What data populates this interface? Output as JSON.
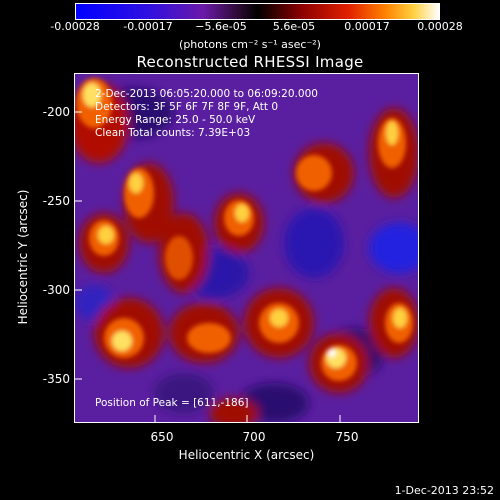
{
  "colorbar": {
    "ticks": [
      "-0.00028",
      "-0.00017",
      "−5.6e-05",
      "5.6e-05",
      "0.00017",
      "0.00028"
    ],
    "units": "(photons cm⁻² s⁻¹ asec⁻²)"
  },
  "title": "Reconstructed RHESSI Image",
  "annotations": {
    "time_range": "2-Dec-2013 06:05:20.000 to 06:09:20.000",
    "detectors": "Detectors: 3F 5F 6F 7F 8F 9F, Att 0",
    "energy_range": "Energy Range: 25.0 - 50.0 keV",
    "algorithm": "Clean     Total counts: 7.39E+03",
    "peak": "Position of Peak = [611,-186]"
  },
  "chart_data": {
    "type": "heatmap",
    "title": "Reconstructed RHESSI Image",
    "xlabel": "Heliocentric X (arcsec)",
    "ylabel": "Heliocentric Y (arcsec)",
    "xlim": [
      605,
      790
    ],
    "ylim": [
      -375,
      -180
    ],
    "xticks": [
      650,
      700,
      750
    ],
    "yticks": [
      -200,
      -250,
      -300,
      -350
    ],
    "color_range": [
      -0.00028,
      0.00028
    ],
    "peak_position": [
      611,
      -186
    ]
  },
  "timestamp": "1-Dec-2013 23:52"
}
